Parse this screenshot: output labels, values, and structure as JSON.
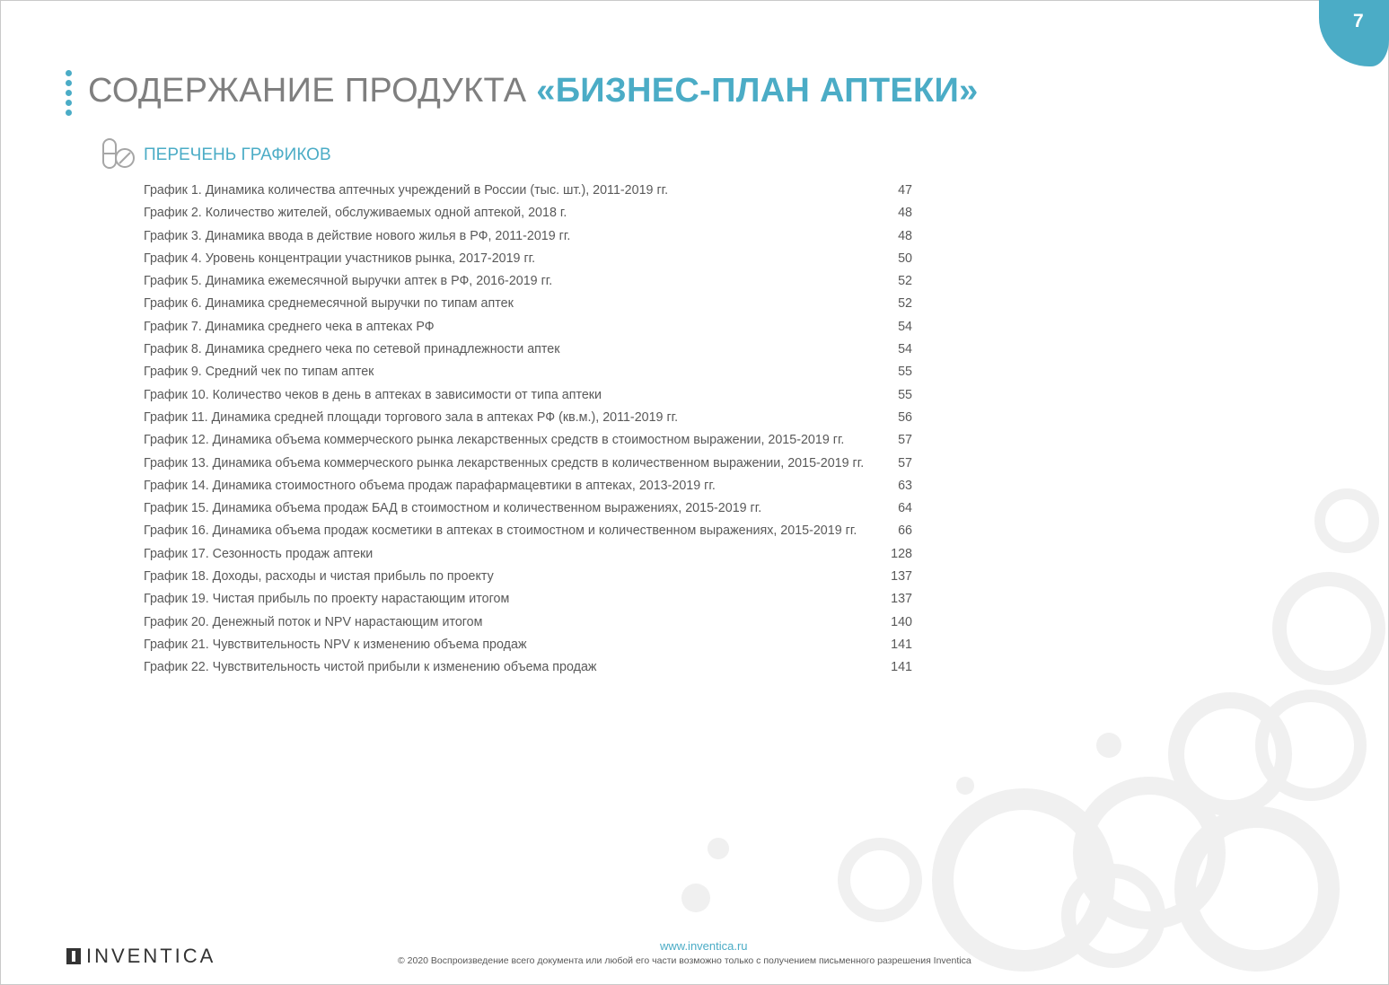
{
  "page_number": "7",
  "header": {
    "title_plain": "СОДЕРЖАНИЕ ПРОДУКТА ",
    "title_accent": "«БИЗНЕС-ПЛАН АПТЕКИ»"
  },
  "section": {
    "title": "ПЕРЕЧЕНЬ ГРАФИКОВ",
    "icon": "pills-icon"
  },
  "items": [
    {
      "label": "График 1. Динамика количества аптечных учреждений в России (тыс. шт.), 2011-2019 гг.",
      "page": "47"
    },
    {
      "label": "График 2. Количество жителей, обслуживаемых одной аптекой, 2018 г.",
      "page": "48"
    },
    {
      "label": "График 3. Динамика ввода в действие нового жилья в РФ, 2011-2019 гг.",
      "page": "48"
    },
    {
      "label": "График 4. Уровень концентрации участников рынка, 2017-2019 гг.",
      "page": "50"
    },
    {
      "label": "График 5. Динамика ежемесячной выручки аптек в РФ, 2016-2019 гг.",
      "page": "52"
    },
    {
      "label": "График 6. Динамика среднемесячной выручки по типам аптек",
      "page": "52"
    },
    {
      "label": "График 7. Динамика среднего чека в аптеках РФ",
      "page": "54"
    },
    {
      "label": "График 8. Динамика среднего чека по сетевой принадлежности аптек",
      "page": "54"
    },
    {
      "label": "График 9. Средний чек по типам аптек",
      "page": "55"
    },
    {
      "label": "График 10. Количество чеков в день в аптеках в зависимости от типа аптеки",
      "page": "55"
    },
    {
      "label": "График 11. Динамика средней площади торгового зала в аптеках РФ (кв.м.), 2011-2019 гг.",
      "page": "56"
    },
    {
      "label": "График 12. Динамика объема коммерческого рынка лекарственных средств в стоимостном выражении, 2015-2019 гг.",
      "page": "57"
    },
    {
      "label": "График 13. Динамика объема коммерческого рынка лекарственных средств в количественном выражении, 2015-2019 гг.",
      "page": "57"
    },
    {
      "label": "График 14. Динамика стоимостного объема продаж парафармацевтики в аптеках, 2013-2019 гг.",
      "page": "63"
    },
    {
      "label": "График 15. Динамика объема продаж БАД в стоимостном и количественном выражениях, 2015-2019 гг.",
      "page": "64"
    },
    {
      "label": "График 16. Динамика объема продаж косметики в аптеках в стоимостном и количественном выражениях, 2015-2019 гг.",
      "page": "66"
    },
    {
      "label": "График 17. Сезонность продаж аптеки",
      "page": "128"
    },
    {
      "label": "График 18. Доходы, расходы и чистая прибыль по проекту",
      "page": "137"
    },
    {
      "label": "График 19. Чистая прибыль по проекту нарастающим итогом",
      "page": "137"
    },
    {
      "label": "График 20. Денежный поток и NPV нарастающим итогом",
      "page": "140"
    },
    {
      "label": "График 21. Чувствительность NPV к изменению объема продаж",
      "page": "141"
    },
    {
      "label": "График 22. Чувствительность чистой прибыли к изменению объема продаж",
      "page": "141"
    }
  ],
  "footer": {
    "logo": "INVENTICA",
    "url": "www.inventica.ru",
    "copyright": "© 2020 Воспроизведение всего документа или любой его части возможно только с получением письменного разрешения Inventica"
  },
  "colors": {
    "accent": "#4bacc6",
    "text": "#595959",
    "title_gray": "#7f7f7f"
  }
}
